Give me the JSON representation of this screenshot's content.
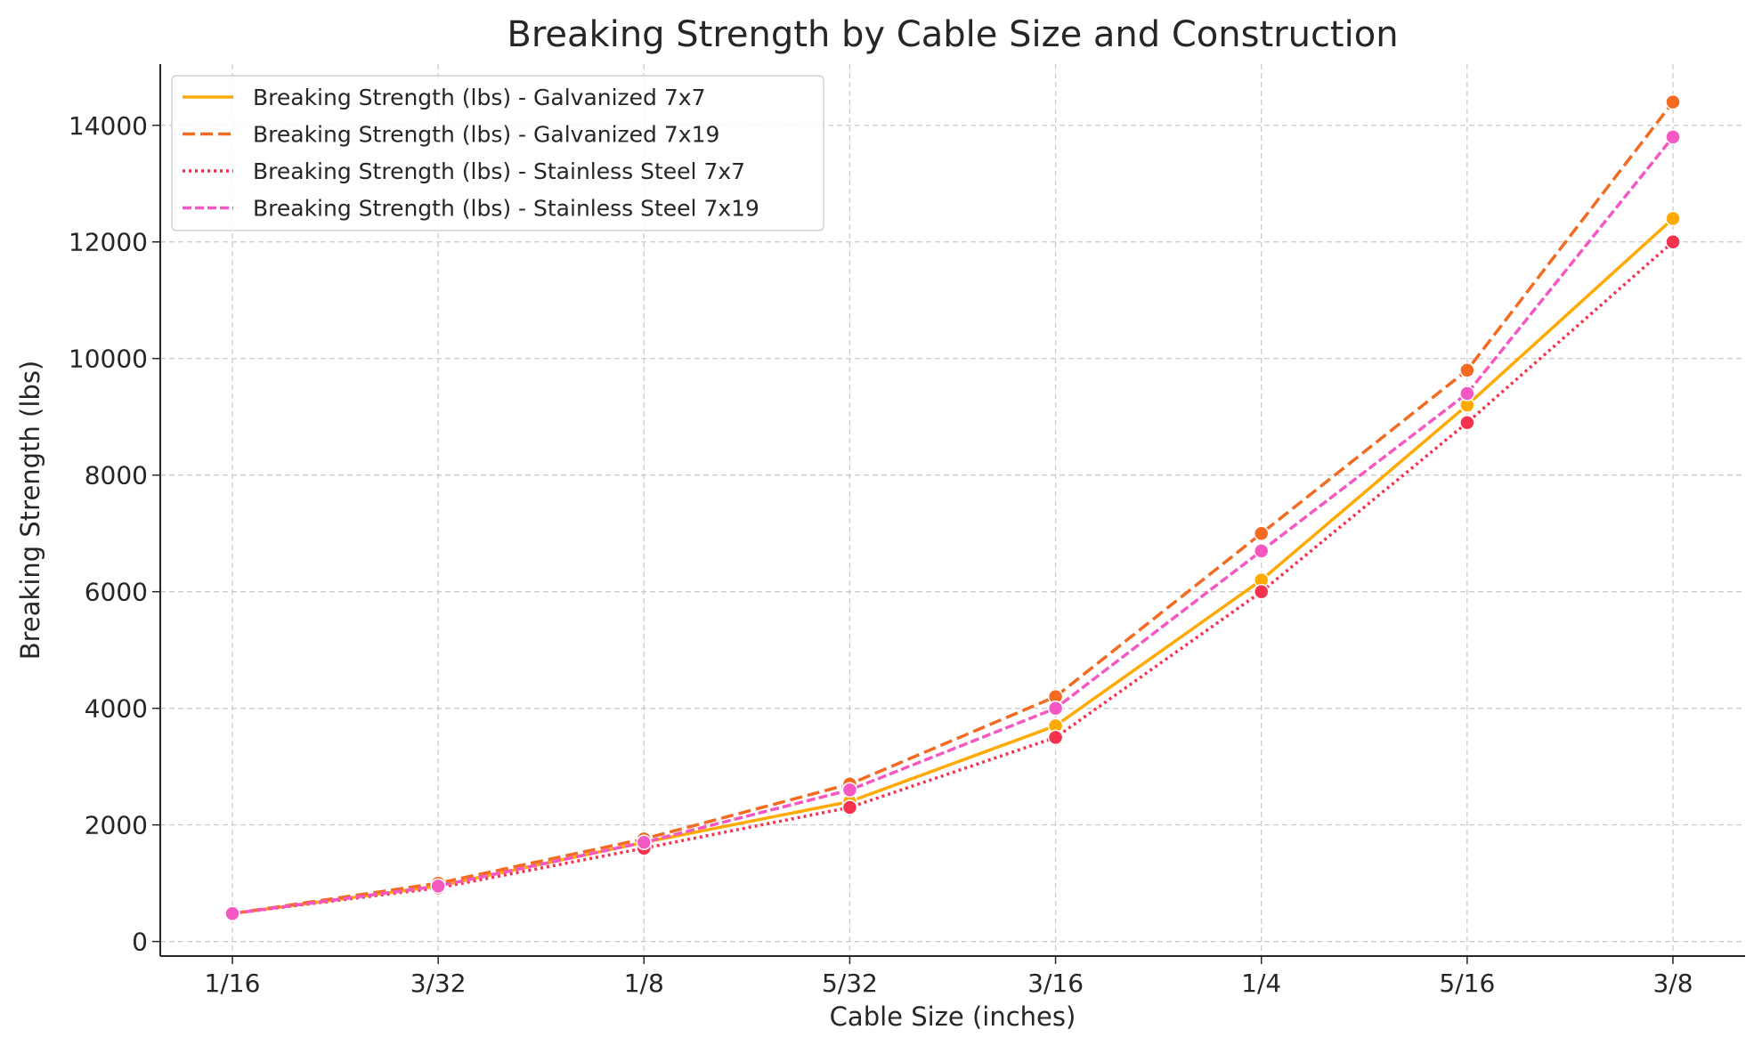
{
  "chart_data": {
    "type": "line",
    "title": "Breaking Strength by Cable Size and Construction",
    "xlabel": "Cable Size (inches)",
    "ylabel": "Breaking Strength (lbs)",
    "categories": [
      "1/16",
      "3/32",
      "1/8",
      "5/32",
      "3/16",
      "1/4",
      "5/16",
      "3/8"
    ],
    "ylim": [
      -250,
      15050
    ],
    "yticks": [
      0,
      2000,
      4000,
      6000,
      8000,
      10000,
      12000,
      14000
    ],
    "grid": true,
    "legend_position": "top-left",
    "series": [
      {
        "name": "Breaking Strength (lbs) - Galvanized 7x7",
        "color": "#FFAA00",
        "dash": "solid",
        "values": [
          480,
          950,
          1700,
          2400,
          3700,
          6200,
          9200,
          12400
        ]
      },
      {
        "name": "Breaking Strength (lbs) - Galvanized 7x19",
        "color": "#F26B21",
        "dash": "dashed",
        "values": [
          480,
          1000,
          1760,
          2700,
          4200,
          7000,
          9800,
          14400
        ]
      },
      {
        "name": "Breaking Strength (lbs) - Stainless Steel 7x7",
        "color": "#F5334F",
        "dash": "dotted",
        "values": [
          480,
          920,
          1600,
          2300,
          3500,
          6000,
          8900,
          12000
        ]
      },
      {
        "name": "Breaking Strength (lbs) - Stainless Steel 7x19",
        "color": "#F558C3",
        "dash": "dashdot",
        "values": [
          480,
          950,
          1700,
          2600,
          4000,
          6700,
          9400,
          13800
        ]
      }
    ]
  }
}
